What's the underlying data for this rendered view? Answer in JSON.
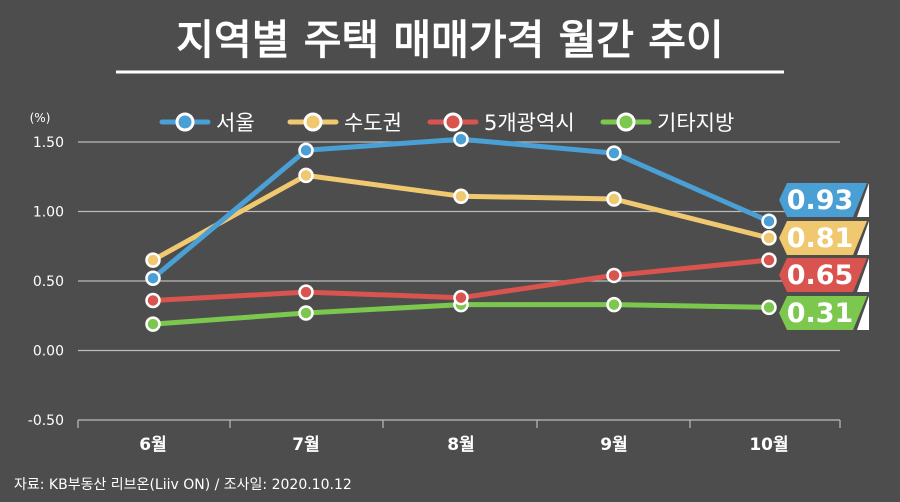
{
  "chart_data": {
    "type": "line",
    "title": "지역별 주택 매매가격 월간 추이",
    "unit_label": "(%)",
    "categories": [
      "6월",
      "7월",
      "8월",
      "9월",
      "10월"
    ],
    "yticks": [
      "1.50",
      "1.00",
      "0.50",
      "0.00",
      "-0.50"
    ],
    "ylim": [
      -0.5,
      1.5
    ],
    "legend_position": "top",
    "series": [
      {
        "name": "서울",
        "color": "#4a9fd4",
        "values": [
          0.52,
          1.44,
          1.52,
          1.42,
          0.93
        ],
        "end_label": "0.93"
      },
      {
        "name": "수도권",
        "color": "#f0c870",
        "values": [
          0.65,
          1.26,
          1.11,
          1.09,
          0.81
        ],
        "end_label": "0.81"
      },
      {
        "name": "5개광역시",
        "color": "#d9534f",
        "values": [
          0.36,
          0.42,
          0.38,
          0.54,
          0.65
        ],
        "end_label": "0.65"
      },
      {
        "name": "기타지방",
        "color": "#7cc84f",
        "values": [
          0.19,
          0.27,
          0.33,
          0.33,
          0.31
        ],
        "end_label": "0.31"
      }
    ],
    "source": "자료: KB부동산 리브온(Liiv ON)  / 조사일: 2020.10.12"
  }
}
